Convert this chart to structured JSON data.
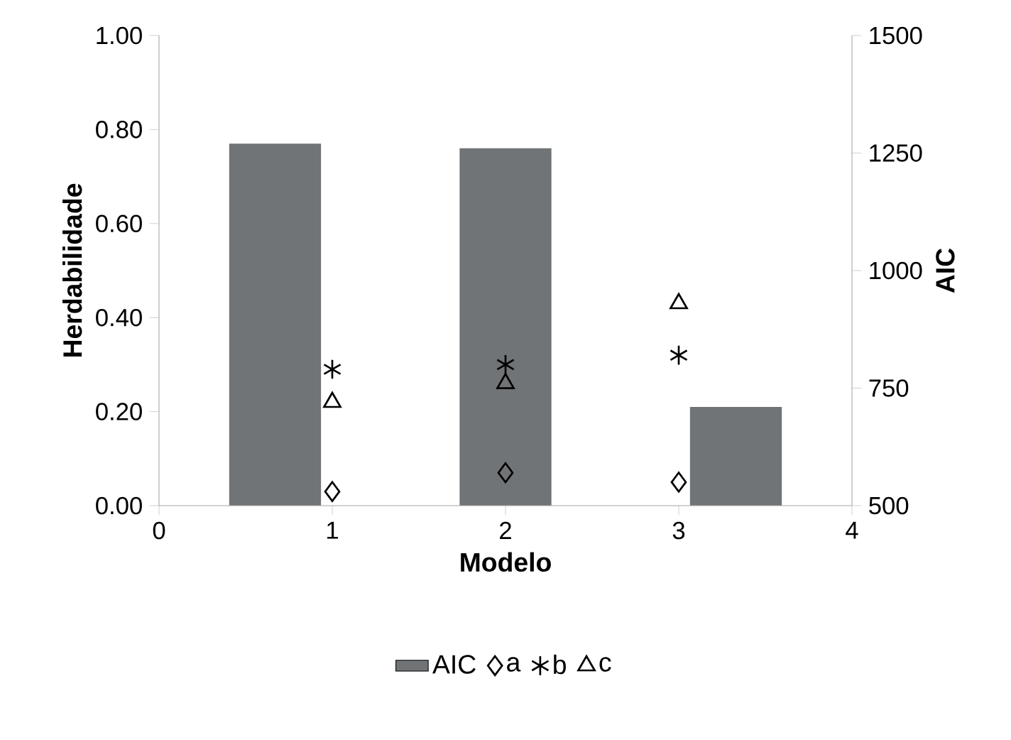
{
  "chart_data": {
    "type": "scatter",
    "xlabel": "Modelo",
    "ylabel": "Herdabilidade",
    "y2label": "AIC",
    "xlim": [
      0,
      4
    ],
    "xticks": [
      0,
      1,
      2,
      3,
      4
    ],
    "ylim": [
      0,
      1
    ],
    "yticks": [
      {
        "value": 0,
        "label": "0.00"
      },
      {
        "value": 0.2,
        "label": "0.20"
      },
      {
        "value": 0.4,
        "label": "0.40"
      },
      {
        "value": 0.6,
        "label": "0.60"
      },
      {
        "value": 0.8,
        "label": "0.80"
      },
      {
        "value": 1,
        "label": "1.00"
      }
    ],
    "y2lim": [
      500,
      1500
    ],
    "y2ticks": [
      500,
      750,
      1000,
      1250,
      1500
    ],
    "legend": "bottom",
    "grid": false,
    "series": [
      {
        "name": "AIC",
        "type": "bar",
        "axis": "y2",
        "color": "#717476",
        "x": [
          0.67,
          2,
          3.33
        ],
        "values": [
          1270,
          1260,
          710
        ]
      },
      {
        "name": "a",
        "marker": "diamond",
        "color": "#000000",
        "x": [
          1,
          2,
          3
        ],
        "values": [
          0.03,
          0.07,
          0.05
        ]
      },
      {
        "name": "b",
        "marker": "cross",
        "color": "#000000",
        "x": [
          1,
          2,
          3
        ],
        "values": [
          0.29,
          0.3,
          0.32
        ]
      },
      {
        "name": "c",
        "marker": "triangle",
        "color": "#000000",
        "x": [
          1,
          2,
          3
        ],
        "values": [
          0.22,
          0.26,
          0.43
        ]
      }
    ]
  }
}
